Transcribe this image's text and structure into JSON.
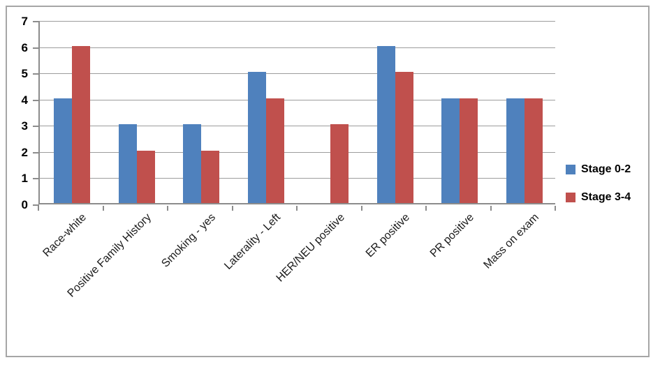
{
  "chart_data": {
    "type": "bar",
    "title": "",
    "xlabel": "",
    "ylabel": "",
    "categories": [
      "Race-white",
      "Positive Family History",
      "Smoking - yes",
      "Laterality - Left",
      "HER/NEU positive",
      "ER positive",
      "PR positive",
      "Mass on exam"
    ],
    "series": [
      {
        "name": "Stage 0-2",
        "color": "#4f81bd",
        "values": [
          4,
          3,
          3,
          5,
          0,
          6,
          4,
          4
        ]
      },
      {
        "name": "Stage 3-4",
        "color": "#c0504d",
        "values": [
          6,
          2,
          2,
          4,
          3,
          5,
          4,
          4
        ]
      }
    ],
    "ylim": [
      0,
      7
    ],
    "yticks": [
      0,
      1,
      2,
      3,
      4,
      5,
      6,
      7
    ],
    "grid": "horizontal",
    "legend_position": "right"
  },
  "colors": {
    "gridline": "#9c9c9c",
    "axis": "#8c8c8c",
    "frame_border": "#a6a6a6",
    "background": "#ffffff"
  }
}
